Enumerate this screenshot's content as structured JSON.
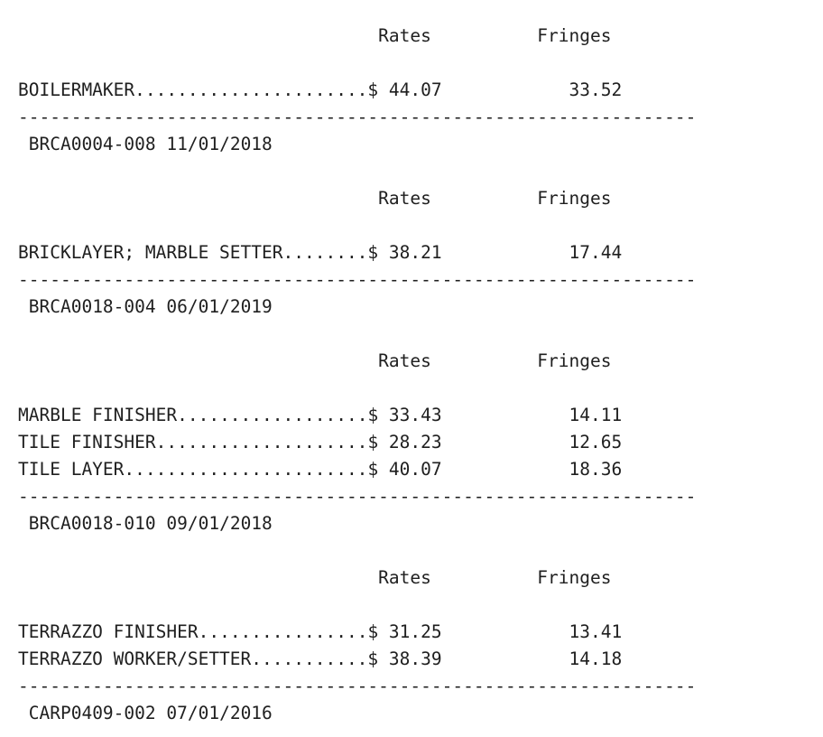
{
  "page": {
    "background_color": "#ffffff",
    "text_color": "#1f1f1f"
  },
  "document": {
    "type": "wage-determination-rate-listing",
    "columns": {
      "rates_label": "Rates",
      "fringes_label": "Fringes"
    },
    "format": {
      "classification_field_width": 33,
      "header_indent": 34,
      "header_gap": 10,
      "rate_fringe_gap": 12,
      "separator_char": "-",
      "separator_length": 64,
      "footer_indent": 1
    },
    "sections": [
      {
        "rows": [
          {
            "classification": "BOILERMAKER",
            "rate": "$ 44.07",
            "fringe": "33.52"
          }
        ],
        "footer_id": "BRCA0004-008",
        "footer_date": "11/01/2018"
      },
      {
        "rows": [
          {
            "classification": "BRICKLAYER; MARBLE SETTER",
            "rate": "$ 38.21",
            "fringe": "17.44"
          }
        ],
        "footer_id": "BRCA0018-004",
        "footer_date": "06/01/2019"
      },
      {
        "rows": [
          {
            "classification": "MARBLE FINISHER",
            "rate": "$ 33.43",
            "fringe": "14.11"
          },
          {
            "classification": "TILE FINISHER",
            "rate": "$ 28.23",
            "fringe": "12.65"
          },
          {
            "classification": "TILE LAYER",
            "rate": "$ 40.07",
            "fringe": "18.36"
          }
        ],
        "footer_id": "BRCA0018-010",
        "footer_date": "09/01/2018"
      },
      {
        "rows": [
          {
            "classification": "TERRAZZO FINISHER",
            "rate": "$ 31.25",
            "fringe": "13.41"
          },
          {
            "classification": "TERRAZZO WORKER/SETTER",
            "rate": "$ 38.39",
            "fringe": "14.18"
          }
        ],
        "footer_id": "CARP0409-002",
        "footer_date": "07/01/2016"
      }
    ]
  }
}
